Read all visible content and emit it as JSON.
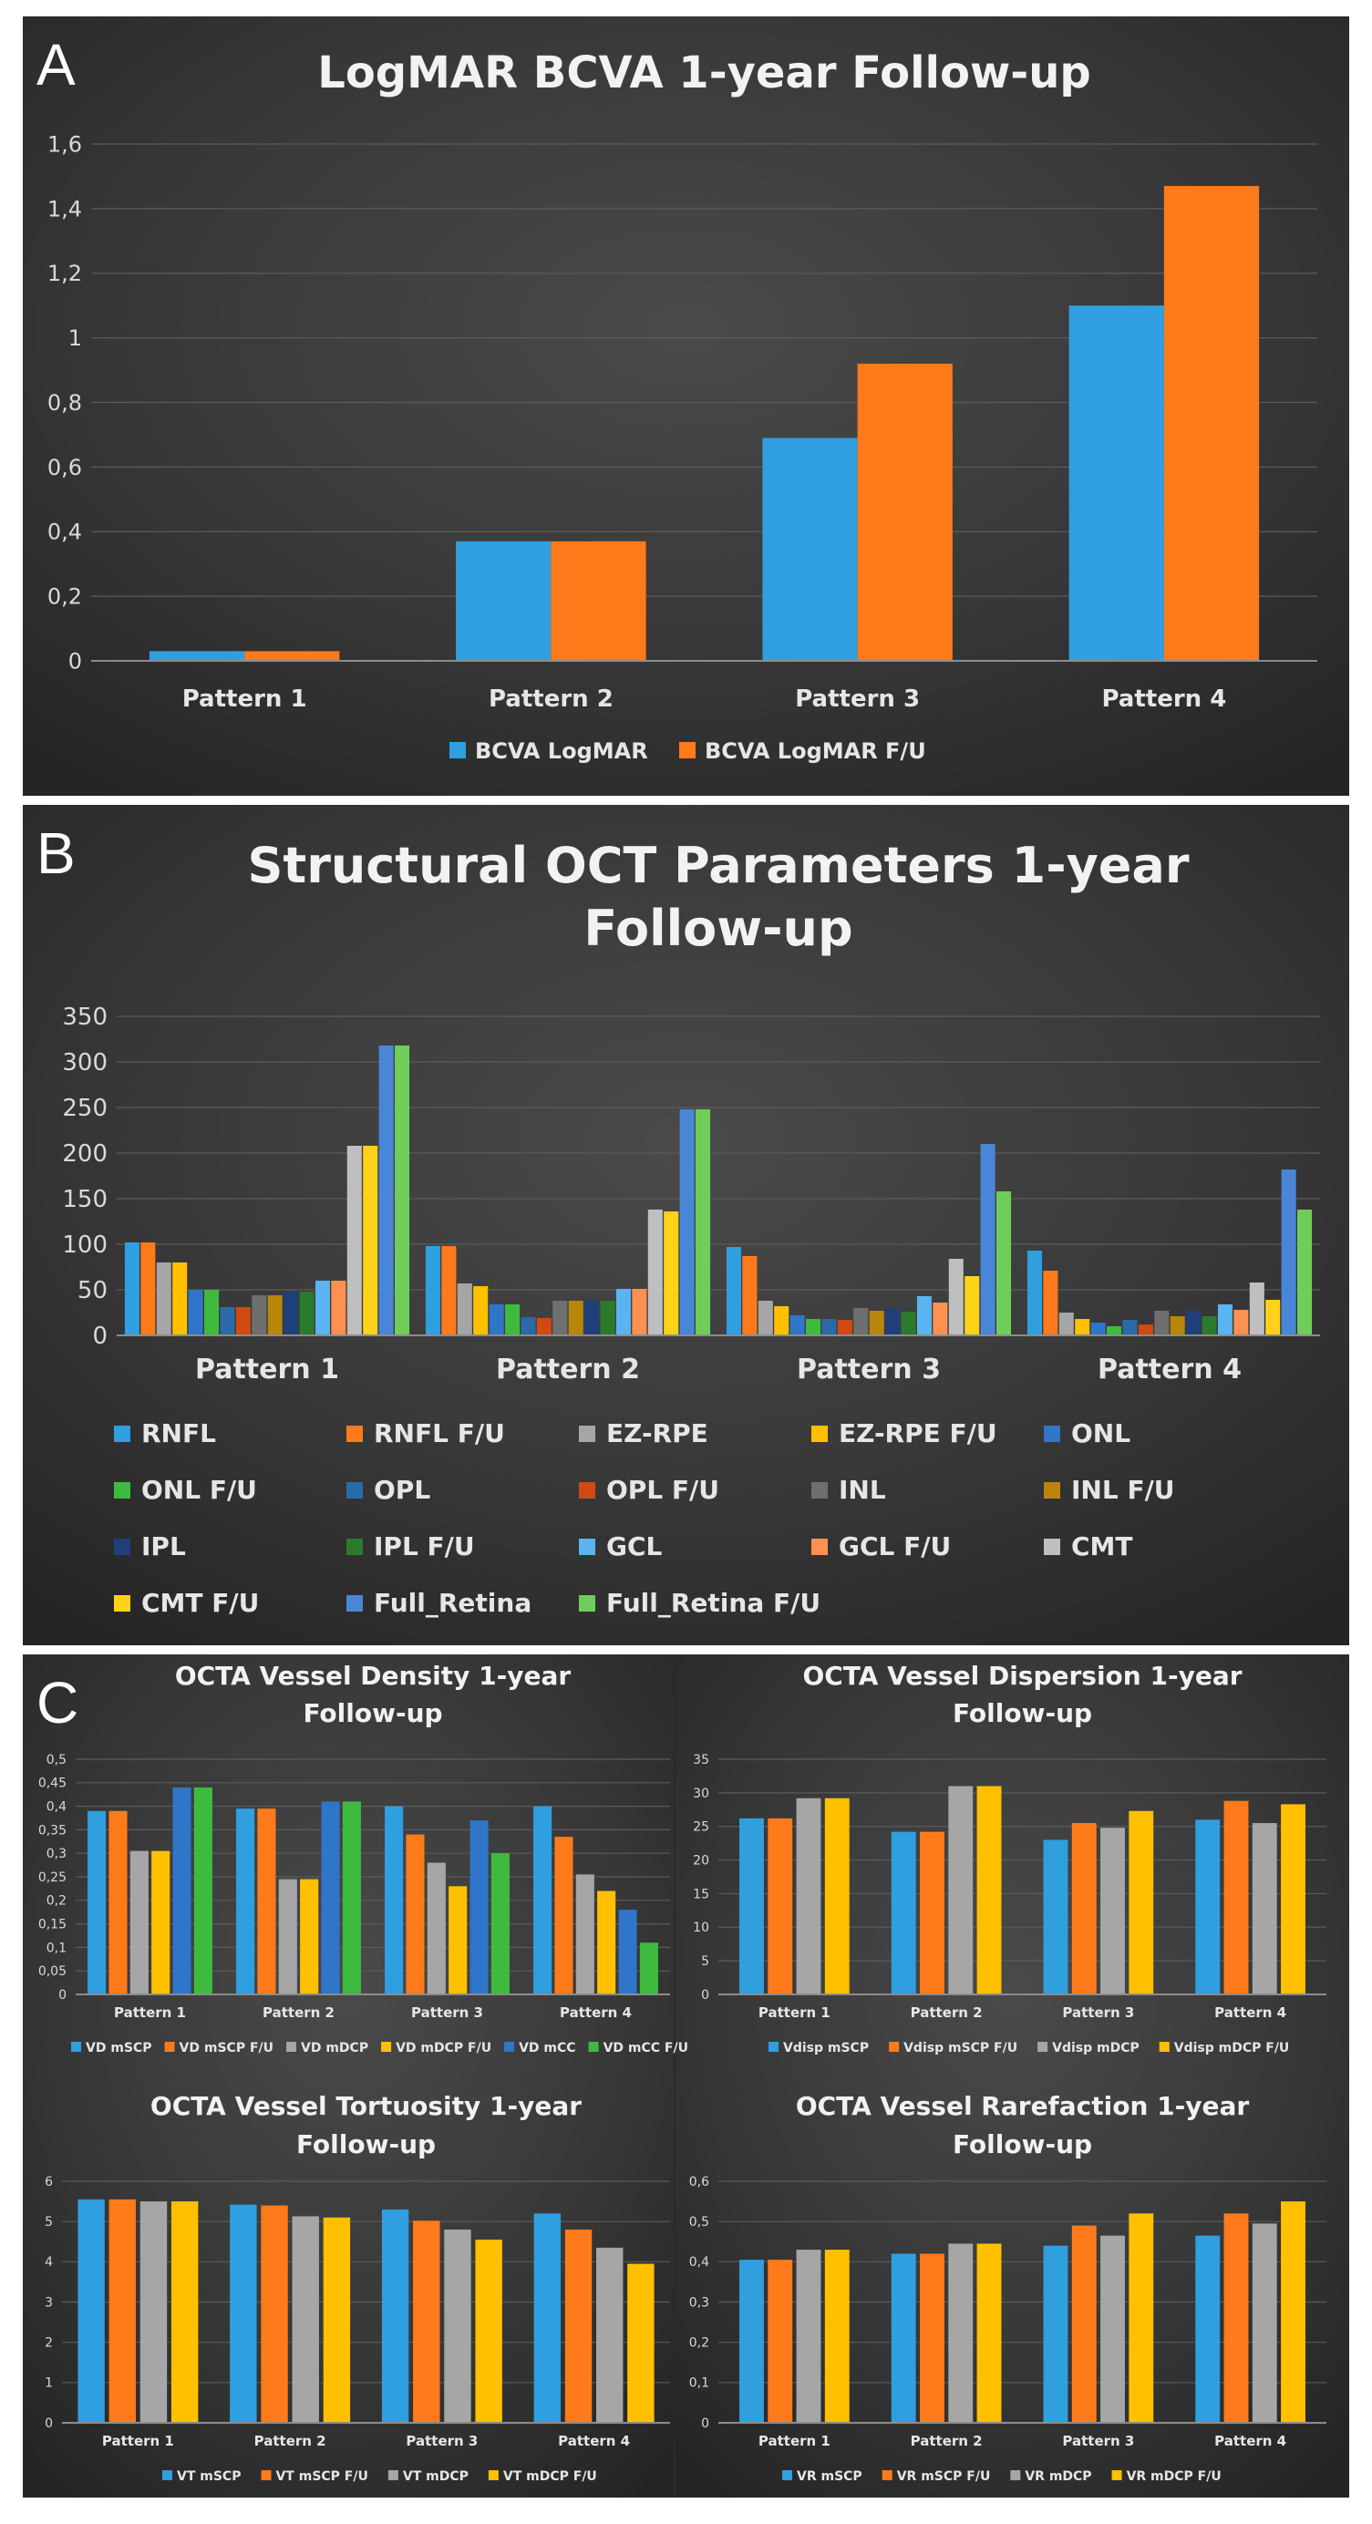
{
  "colors": {
    "blue": "#2f9fe0",
    "orange": "#ff7a1a",
    "gray": "#a6a6a6",
    "yellow": "#ffc000",
    "blue2": "#2f75c8",
    "green": "#3ebb3e",
    "steel": "#2a6aa8",
    "red": "#d04a12",
    "dgray": "#6f6f6f",
    "gold": "#b8860b",
    "navy": "#1f3f7a",
    "dgreen": "#2c7a2c",
    "sky": "#5ab4f0",
    "salmon": "#ff9150",
    "lgray": "#bfbfbf",
    "lyellow": "#ffd21a",
    "cobalt": "#4a86d8",
    "lgreen": "#6fce5a"
  },
  "panel_letters": [
    "A",
    "B",
    "C"
  ],
  "chart_data": [
    {
      "id": "A",
      "type": "bar",
      "title": "LogMAR BCVA 1-year Follow-up",
      "categories": [
        "Pattern 1",
        "Pattern 2",
        "Pattern 3",
        "Pattern 4"
      ],
      "yticks": [
        "0",
        "0,2",
        "0,4",
        "0,6",
        "0,8",
        "1",
        "1,2",
        "1,4",
        "1,6"
      ],
      "ylim": [
        0,
        1.6
      ],
      "series": [
        {
          "name": "BCVA LogMAR",
          "color": "blue",
          "values": [
            0.03,
            0.37,
            0.69,
            1.1
          ]
        },
        {
          "name": "BCVA LogMAR F/U",
          "color": "orange",
          "values": [
            0.03,
            0.37,
            0.92,
            1.47
          ]
        }
      ]
    },
    {
      "id": "B",
      "type": "bar",
      "title": [
        "Structural OCT Parameters 1-year",
        "Follow-up"
      ],
      "categories": [
        "Pattern 1",
        "Pattern 2",
        "Pattern 3",
        "Pattern 4"
      ],
      "yticks": [
        "0",
        "50",
        "100",
        "150",
        "200",
        "250",
        "300",
        "350"
      ],
      "ylim": [
        0,
        350
      ],
      "series": [
        {
          "name": "RNFL",
          "color": "blue",
          "values": [
            102,
            98,
            97,
            93
          ]
        },
        {
          "name": "RNFL F/U",
          "color": "orange",
          "values": [
            102,
            98,
            87,
            71
          ]
        },
        {
          "name": "EZ-RPE",
          "color": "gray",
          "values": [
            80,
            57,
            38,
            25
          ]
        },
        {
          "name": "EZ-RPE F/U",
          "color": "yellow",
          "values": [
            80,
            54,
            32,
            18
          ]
        },
        {
          "name": "ONL",
          "color": "blue2",
          "values": [
            50,
            34,
            22,
            14
          ]
        },
        {
          "name": "ONL F/U",
          "color": "green",
          "values": [
            50,
            34,
            18,
            10
          ]
        },
        {
          "name": "OPL",
          "color": "steel",
          "values": [
            31,
            20,
            18,
            17
          ]
        },
        {
          "name": "OPL F/U",
          "color": "red",
          "values": [
            31,
            19,
            17,
            12
          ]
        },
        {
          "name": "INL",
          "color": "dgray",
          "values": [
            44,
            38,
            30,
            27
          ]
        },
        {
          "name": "INL F/U",
          "color": "gold",
          "values": [
            44,
            38,
            27,
            21
          ]
        },
        {
          "name": "IPL",
          "color": "navy",
          "values": [
            48,
            38,
            29,
            27
          ]
        },
        {
          "name": "IPL F/U",
          "color": "dgreen",
          "values": [
            48,
            38,
            26,
            21
          ]
        },
        {
          "name": "GCL",
          "color": "sky",
          "values": [
            60,
            51,
            43,
            34
          ]
        },
        {
          "name": "GCL F/U",
          "color": "salmon",
          "values": [
            60,
            51,
            36,
            28
          ]
        },
        {
          "name": "CMT",
          "color": "lgray",
          "values": [
            208,
            138,
            84,
            58
          ]
        },
        {
          "name": "CMT F/U",
          "color": "lyellow",
          "values": [
            208,
            136,
            65,
            39
          ]
        },
        {
          "name": "Full_Retina",
          "color": "cobalt",
          "values": [
            318,
            248,
            210,
            182
          ]
        },
        {
          "name": "Full_Retina F/U",
          "color": "lgreen",
          "values": [
            318,
            248,
            158,
            138
          ]
        }
      ]
    },
    {
      "id": "C1",
      "type": "bar",
      "title": [
        "OCTA Vessel Density 1-year",
        "Follow-up"
      ],
      "categories": [
        "Pattern 1",
        "Pattern 2",
        "Pattern 3",
        "Pattern 4"
      ],
      "yticks": [
        "0",
        "0,05",
        "0,1",
        "0,15",
        "0,2",
        "0,25",
        "0,3",
        "0,35",
        "0,4",
        "0,45",
        "0,5"
      ],
      "ylim": [
        0,
        0.5
      ],
      "series": [
        {
          "name": "VD mSCP",
          "color": "blue",
          "values": [
            0.39,
            0.395,
            0.4,
            0.4
          ]
        },
        {
          "name": "VD mSCP F/U",
          "color": "orange",
          "values": [
            0.39,
            0.395,
            0.34,
            0.335
          ]
        },
        {
          "name": "VD mDCP",
          "color": "gray",
          "values": [
            0.305,
            0.245,
            0.28,
            0.255
          ]
        },
        {
          "name": "VD mDCP F/U",
          "color": "yellow",
          "values": [
            0.305,
            0.245,
            0.23,
            0.22
          ]
        },
        {
          "name": "VD mCC",
          "color": "blue2",
          "values": [
            0.44,
            0.41,
            0.37,
            0.18
          ]
        },
        {
          "name": "VD mCC F/U",
          "color": "green",
          "values": [
            0.44,
            0.41,
            0.3,
            0.11
          ]
        }
      ]
    },
    {
      "id": "C2",
      "type": "bar",
      "title": [
        "OCTA Vessel Dispersion 1-year",
        "Follow-up"
      ],
      "categories": [
        "Pattern 1",
        "Pattern 2",
        "Pattern 3",
        "Pattern 4"
      ],
      "yticks": [
        "0",
        "5",
        "10",
        "15",
        "20",
        "25",
        "30",
        "35"
      ],
      "ylim": [
        0,
        35
      ],
      "series": [
        {
          "name": "Vdisp mSCP",
          "color": "blue",
          "values": [
            26.2,
            24.2,
            23,
            26
          ]
        },
        {
          "name": "Vdisp mSCP F/U",
          "color": "orange",
          "values": [
            26.2,
            24.2,
            25.5,
            28.8
          ]
        },
        {
          "name": "Vdisp mDCP",
          "color": "gray",
          "values": [
            29.2,
            31,
            24.8,
            25.5
          ]
        },
        {
          "name": "Vdisp mDCP F/U",
          "color": "yellow",
          "values": [
            29.2,
            31,
            27.3,
            28.3
          ]
        }
      ]
    },
    {
      "id": "C3",
      "type": "bar",
      "title": [
        "OCTA Vessel Tortuosity 1-year",
        "Follow-up"
      ],
      "categories": [
        "Pattern 1",
        "Pattern 2",
        "Pattern 3",
        "Pattern 4"
      ],
      "yticks": [
        "0",
        "1",
        "2",
        "3",
        "4",
        "5",
        "6"
      ],
      "ylim": [
        0,
        6
      ],
      "series": [
        {
          "name": "VT mSCP",
          "color": "blue",
          "values": [
            5.55,
            5.42,
            5.3,
            5.2
          ]
        },
        {
          "name": "VT mSCP F/U",
          "color": "orange",
          "values": [
            5.55,
            5.4,
            5.02,
            4.8
          ]
        },
        {
          "name": "VT mDCP",
          "color": "gray",
          "values": [
            5.5,
            5.13,
            4.8,
            4.35
          ]
        },
        {
          "name": "VT mDCP F/U",
          "color": "yellow",
          "values": [
            5.5,
            5.1,
            4.55,
            3.95
          ]
        }
      ]
    },
    {
      "id": "C4",
      "type": "bar",
      "title": [
        "OCTA Vessel Rarefaction 1-year",
        "Follow-up"
      ],
      "categories": [
        "Pattern 1",
        "Pattern 2",
        "Pattern 3",
        "Pattern 4"
      ],
      "yticks": [
        "0",
        "0,1",
        "0,2",
        "0,3",
        "0,4",
        "0,5",
        "0,6"
      ],
      "ylim": [
        0,
        0.6
      ],
      "series": [
        {
          "name": "VR mSCP",
          "color": "blue",
          "values": [
            0.405,
            0.42,
            0.44,
            0.465
          ]
        },
        {
          "name": "VR mSCP F/U",
          "color": "orange",
          "values": [
            0.405,
            0.42,
            0.49,
            0.52
          ]
        },
        {
          "name": "VR mDCP",
          "color": "gray",
          "values": [
            0.43,
            0.445,
            0.465,
            0.495
          ]
        },
        {
          "name": "VR mDCP F/U",
          "color": "yellow",
          "values": [
            0.43,
            0.445,
            0.52,
            0.55
          ]
        }
      ]
    }
  ]
}
